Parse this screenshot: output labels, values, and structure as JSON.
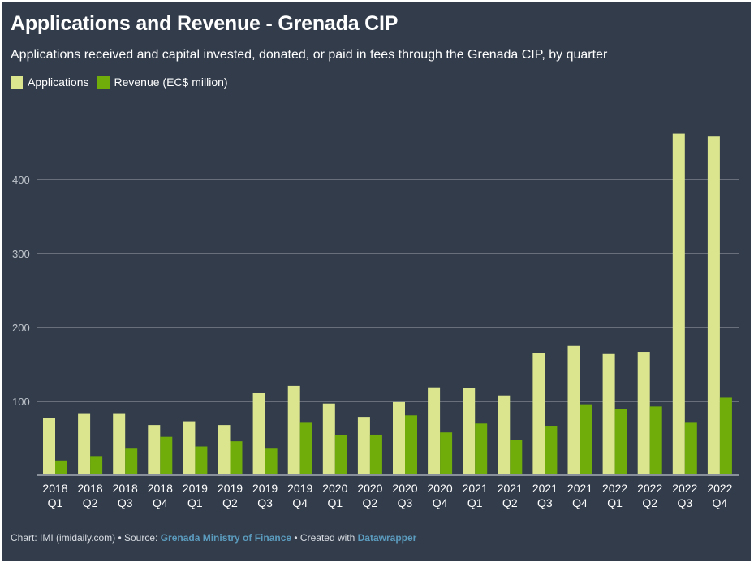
{
  "title": "Applications and Revenue - Grenada CIP",
  "subtitle": "Applications received and capital invested, donated, or paid in fees through the Grenada CIP, by quarter",
  "footer": {
    "chart_credit": "Chart: IMI (imidaily.com)",
    "sep1": " • Source: ",
    "source_link": "Grenada Ministry of Finance",
    "sep2": " • Created with ",
    "tool_link": "Datawrapper"
  },
  "colors": {
    "background": "#323c4b",
    "applications": "#dbe58e",
    "revenue": "#70ad0b",
    "gridline": "#8a9099",
    "axis": "#8a9099",
    "tick_text": "#c0c5cc",
    "link": "#5b9bbd"
  },
  "chart_data": {
    "type": "bar",
    "title": "Applications and Revenue - Grenada CIP",
    "xlabel": "",
    "ylabel": "",
    "ylim": [
      0,
      500
    ],
    "yticks": [
      100,
      200,
      300,
      400
    ],
    "grid": true,
    "legend_position": "top-left",
    "categories": [
      [
        "2018",
        "Q1"
      ],
      [
        "2018",
        "Q2"
      ],
      [
        "2018",
        "Q3"
      ],
      [
        "2018",
        "Q4"
      ],
      [
        "2019",
        "Q1"
      ],
      [
        "2019",
        "Q2"
      ],
      [
        "2019",
        "Q3"
      ],
      [
        "2019",
        "Q4"
      ],
      [
        "2020",
        "Q1"
      ],
      [
        "2020",
        "Q2"
      ],
      [
        "2020",
        "Q3"
      ],
      [
        "2020",
        "Q4"
      ],
      [
        "2021",
        "Q1"
      ],
      [
        "2021",
        "Q2"
      ],
      [
        "2021",
        "Q3"
      ],
      [
        "2021",
        "Q4"
      ],
      [
        "2022",
        "Q1"
      ],
      [
        "2022",
        "Q2"
      ],
      [
        "2022",
        "Q3"
      ],
      [
        "2022",
        "Q4"
      ]
    ],
    "series": [
      {
        "name": "Applications",
        "color": "#dbe58e",
        "values": [
          77,
          84,
          84,
          68,
          73,
          68,
          111,
          121,
          97,
          79,
          99,
          119,
          118,
          108,
          165,
          175,
          164,
          167,
          462,
          458
        ]
      },
      {
        "name": "Revenue (EC$ million)",
        "color": "#70ad0b",
        "values": [
          20,
          26,
          36,
          52,
          39,
          46,
          36,
          71,
          54,
          55,
          81,
          58,
          70,
          48,
          67,
          96,
          90,
          93,
          71,
          105
        ]
      }
    ]
  }
}
